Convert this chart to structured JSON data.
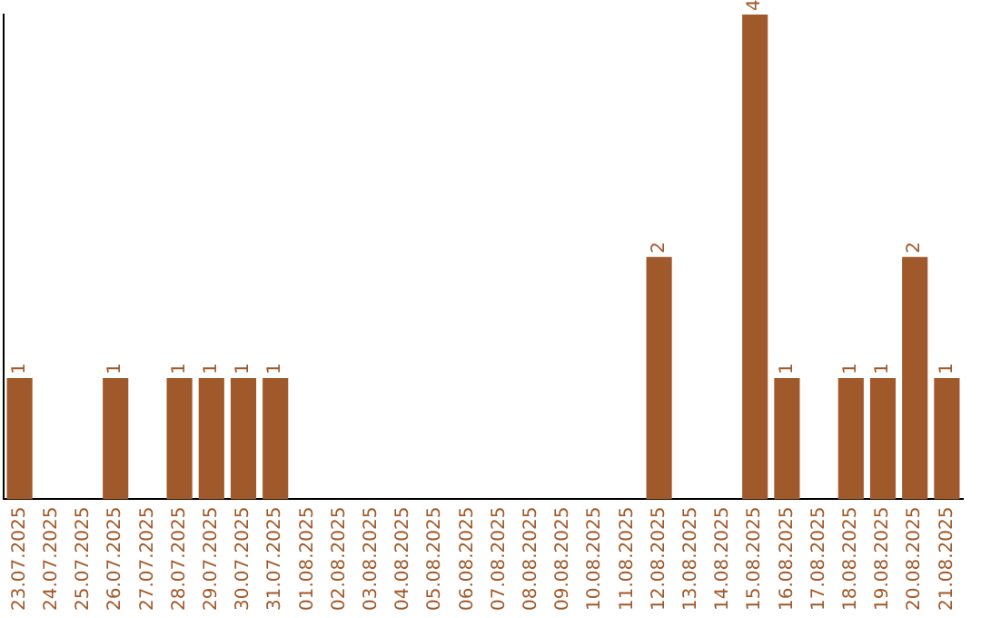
{
  "chart_data": {
    "type": "bar",
    "categories": [
      "23.07.2025",
      "24.07.2025",
      "25.07.2025",
      "26.07.2025",
      "27.07.2025",
      "28.07.2025",
      "29.07.2025",
      "30.07.2025",
      "31.07.2025",
      "01.08.2025",
      "02.08.2025",
      "03.08.2025",
      "04.08.2025",
      "05.08.2025",
      "06.08.2025",
      "07.08.2025",
      "08.08.2025",
      "09.08.2025",
      "10.08.2025",
      "11.08.2025",
      "12.08.2025",
      "13.08.2025",
      "14.08.2025",
      "15.08.2025",
      "16.08.2025",
      "17.08.2025",
      "18.08.2025",
      "19.08.2025",
      "20.08.2025",
      "21.08.2025"
    ],
    "values": [
      1,
      0,
      0,
      1,
      0,
      1,
      1,
      1,
      1,
      0,
      0,
      0,
      0,
      0,
      0,
      0,
      0,
      0,
      0,
      0,
      2,
      0,
      0,
      4,
      1,
      0,
      1,
      1,
      2,
      1
    ],
    "value_labels": [
      "1",
      null,
      null,
      "1",
      null,
      "1",
      "1",
      "1",
      "1",
      null,
      null,
      null,
      null,
      null,
      null,
      null,
      null,
      null,
      null,
      null,
      "2",
      null,
      null,
      "4",
      "1",
      null,
      "1",
      "1",
      "2",
      "1"
    ],
    "color": "#a0592b",
    "tick_labels": "x",
    "grid": false,
    "legend": false
  }
}
